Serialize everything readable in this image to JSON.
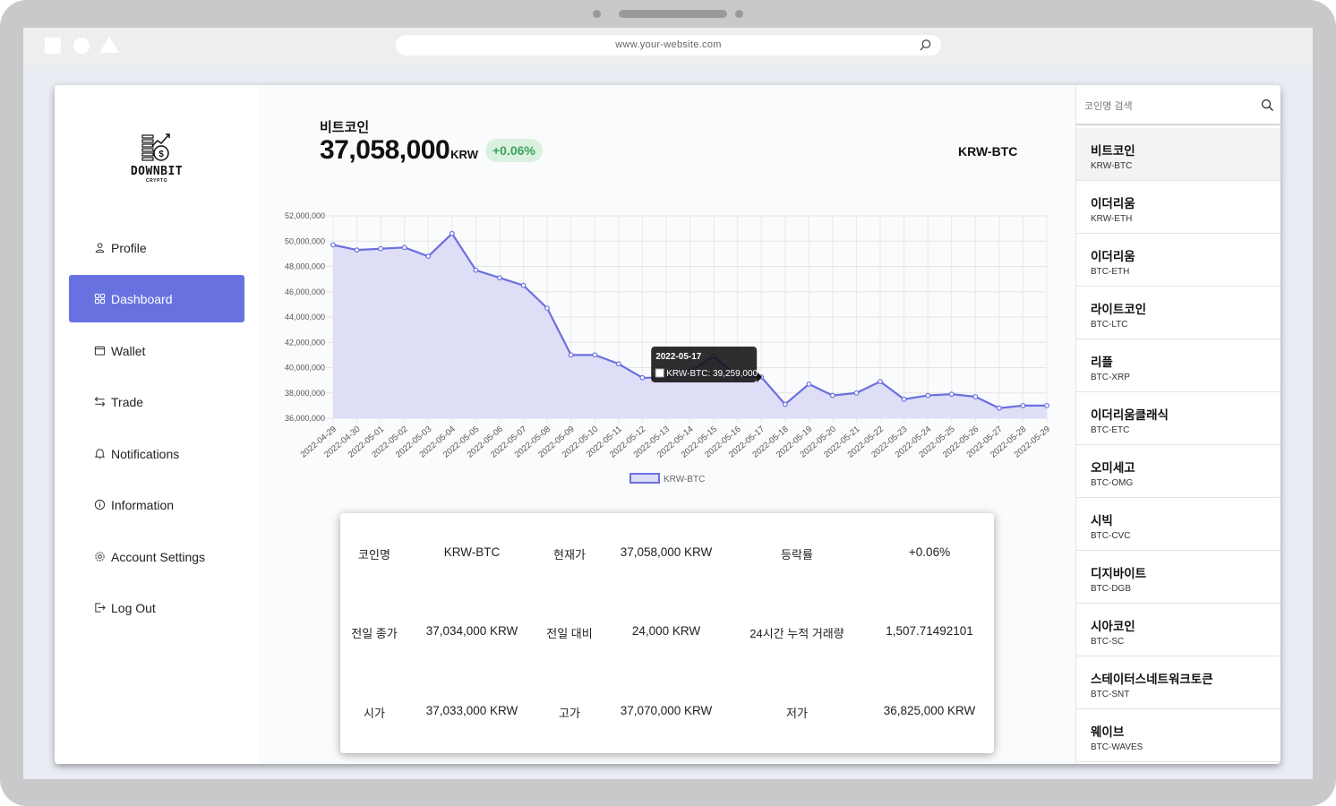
{
  "browser": {
    "url": "www.your-website.com"
  },
  "logo": {
    "name": "DOWNBIT",
    "sub": "CRYPTO"
  },
  "nav": [
    {
      "label": "Profile",
      "icon": "user-icon",
      "active": false
    },
    {
      "label": "Dashboard",
      "icon": "grid-icon",
      "active": true
    },
    {
      "label": "Wallet",
      "icon": "wallet-icon",
      "active": false
    },
    {
      "label": "Trade",
      "icon": "swap-icon",
      "active": false
    },
    {
      "label": "Notifications",
      "icon": "bell-icon",
      "active": false
    },
    {
      "label": "Information",
      "icon": "info-icon",
      "active": false
    },
    {
      "label": "Account Settings",
      "icon": "gear-icon",
      "active": false
    },
    {
      "label": "Log Out",
      "icon": "logout-icon",
      "active": false
    }
  ],
  "header": {
    "coin_name": "비트코인",
    "price": "37,058,000",
    "unit": "KRW",
    "change": "+0.06%",
    "pair": "KRW-BTC"
  },
  "colors": {
    "accent": "#6772e0",
    "line": "#6b70e0",
    "fill": "#dcdcf6",
    "positive_bg": "#dbf1e0",
    "positive_text": "#3aa55c"
  },
  "chart_data": {
    "type": "line",
    "title": "",
    "xlabel": "",
    "ylabel": "",
    "ylim": [
      36000000,
      52000000
    ],
    "y_ticks": [
      "52,000,000",
      "50,000,000",
      "48,000,000",
      "46,000,000",
      "44,000,000",
      "42,000,000",
      "40,000,000",
      "38,000,000",
      "36,000,000"
    ],
    "x": [
      "2022-04-29",
      "2022-04-30",
      "2022-05-01",
      "2022-05-02",
      "2022-05-03",
      "2022-05-04",
      "2022-05-05",
      "2022-05-06",
      "2022-05-07",
      "2022-05-08",
      "2022-05-09",
      "2022-05-10",
      "2022-05-11",
      "2022-05-12",
      "2022-05-13",
      "2022-05-14",
      "2022-05-15",
      "2022-05-16",
      "2022-05-17",
      "2022-05-18",
      "2022-05-19",
      "2022-05-20",
      "2022-05-21",
      "2022-05-22",
      "2022-05-23",
      "2022-05-24",
      "2022-05-25",
      "2022-05-26",
      "2022-05-27",
      "2022-05-28",
      "2022-05-29"
    ],
    "series": [
      {
        "name": "KRW-BTC",
        "values": [
          49700000,
          49300000,
          49400000,
          49500000,
          48800000,
          50600000,
          47700000,
          47100000,
          46500000,
          44700000,
          41000000,
          41000000,
          40300000,
          39200000,
          39200000,
          39700000,
          40900000,
          39300000,
          39259000,
          37100000,
          38700000,
          37800000,
          38000000,
          38900000,
          37500000,
          37800000,
          37900000,
          37700000,
          36800000,
          37000000,
          37000000
        ]
      }
    ],
    "legend": "bottom",
    "grid": true,
    "tooltip": {
      "date": "2022-05-17",
      "text": "KRW-BTC: 39,259,000"
    }
  },
  "info": {
    "row1": [
      "코인명",
      "KRW-BTC",
      "현재가",
      "37,058,000 KRW",
      "등락률",
      "+0.06%"
    ],
    "row2": [
      "전일 종가",
      "37,034,000 KRW",
      "전일 대비",
      "24,000 KRW",
      "24시간 누적 거래량",
      "1,507.71492101"
    ],
    "row3": [
      "시가",
      "37,033,000 KRW",
      "고가",
      "37,070,000 KRW",
      "저가",
      "36,825,000 KRW"
    ]
  },
  "coin_list": {
    "search_placeholder": "코인명 검색",
    "items": [
      {
        "name": "비트코인",
        "code": "KRW-BTC"
      },
      {
        "name": "이더리움",
        "code": "KRW-ETH"
      },
      {
        "name": "이더리움",
        "code": "BTC-ETH"
      },
      {
        "name": "라이트코인",
        "code": "BTC-LTC"
      },
      {
        "name": "리플",
        "code": "BTC-XRP"
      },
      {
        "name": "이더리움클래식",
        "code": "BTC-ETC"
      },
      {
        "name": "오미세고",
        "code": "BTC-OMG"
      },
      {
        "name": "시빅",
        "code": "BTC-CVC"
      },
      {
        "name": "디지바이트",
        "code": "BTC-DGB"
      },
      {
        "name": "시아코인",
        "code": "BTC-SC"
      },
      {
        "name": "스테이터스네트워크토큰",
        "code": "BTC-SNT"
      },
      {
        "name": "웨이브",
        "code": "BTC-WAVES"
      }
    ]
  }
}
